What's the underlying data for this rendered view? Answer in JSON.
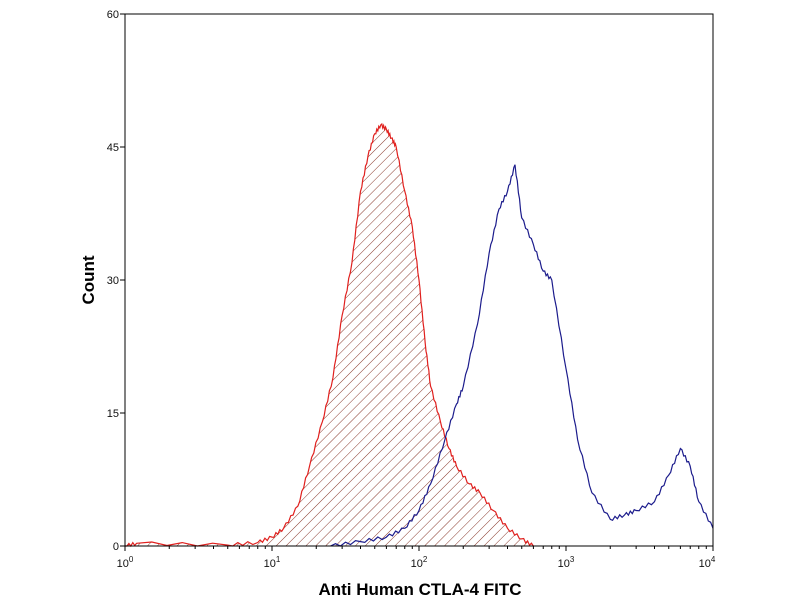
{
  "chart_data": {
    "type": "area",
    "xlabel": "Anti Human CTLA-4 FITC",
    "ylabel": "Count",
    "xscale": "log",
    "xlim": [
      1,
      10000
    ],
    "ylim": [
      0,
      60
    ],
    "grid": false,
    "x_ticks": [
      1,
      10,
      100,
      1000,
      10000
    ],
    "x_tick_labels": [
      {
        "base": "10",
        "exp": "0"
      },
      {
        "base": "10",
        "exp": "1"
      },
      {
        "base": "10",
        "exp": "2"
      },
      {
        "base": "10",
        "exp": "3"
      },
      {
        "base": "10",
        "exp": "4"
      }
    ],
    "y_ticks": [
      0,
      15,
      30,
      45,
      60
    ],
    "y_tick_labels": [
      "0",
      "15",
      "30",
      "45",
      "60"
    ],
    "series": [
      {
        "color": "#e0201e",
        "fill": "hatched",
        "x": [
          1,
          1.2,
          5,
          8,
          10,
          12,
          15,
          18,
          22,
          26,
          30,
          35,
          40,
          45,
          50,
          55,
          60,
          65,
          70,
          80,
          90,
          100,
          110,
          120,
          140,
          160,
          180,
          220,
          260,
          320,
          400,
          500,
          600
        ],
        "y": [
          0,
          0.3,
          0.1,
          0.4,
          1.0,
          2.0,
          4.5,
          9.0,
          14.0,
          19.0,
          26.0,
          32.0,
          40.0,
          44.0,
          46.5,
          47.5,
          47.0,
          46.0,
          45.0,
          40.0,
          36.0,
          30.0,
          23.0,
          18.0,
          14.0,
          11.0,
          9.0,
          7.0,
          6.0,
          4.0,
          2.0,
          0.8,
          0
        ]
      },
      {
        "color": "#1c1c8c",
        "fill": "none",
        "x": [
          25,
          40,
          60,
          80,
          100,
          120,
          150,
          180,
          200,
          250,
          300,
          350,
          400,
          450,
          500,
          600,
          700,
          800,
          1000,
          1200,
          1500,
          2000,
          2500,
          3000,
          4000,
          5000,
          6000,
          7000,
          8000,
          10000
        ],
        "y": [
          0,
          0.5,
          1.0,
          2.0,
          4.0,
          7.0,
          12.0,
          16.0,
          18.0,
          25.0,
          33.0,
          38.0,
          40.0,
          43.0,
          37.0,
          34.0,
          31.0,
          30.0,
          20.0,
          12.0,
          6.0,
          3.0,
          3.5,
          4.0,
          5.0,
          8.0,
          11.0,
          9.0,
          5.0,
          2.0
        ]
      }
    ]
  }
}
